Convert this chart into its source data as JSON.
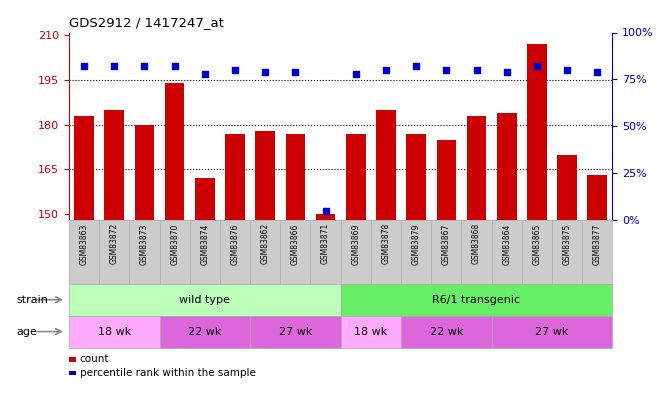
{
  "title": "GDS2912 / 1417247_at",
  "samples": [
    "GSM83863",
    "GSM83872",
    "GSM83873",
    "GSM83870",
    "GSM83874",
    "GSM83876",
    "GSM83862",
    "GSM83866",
    "GSM83871",
    "GSM83869",
    "GSM83878",
    "GSM83879",
    "GSM83867",
    "GSM83868",
    "GSM83864",
    "GSM83865",
    "GSM83875",
    "GSM83877"
  ],
  "counts": [
    183,
    185,
    180,
    194,
    162,
    177,
    178,
    177,
    150,
    177,
    185,
    177,
    175,
    183,
    184,
    207,
    170,
    163
  ],
  "percentiles": [
    82,
    82,
    82,
    82,
    78,
    80,
    79,
    79,
    5,
    78,
    80,
    82,
    80,
    80,
    79,
    82,
    80,
    79
  ],
  "ylim_left": [
    148,
    211
  ],
  "ylim_right": [
    0,
    100
  ],
  "yticks_left": [
    150,
    165,
    180,
    195,
    210
  ],
  "yticks_right": [
    0,
    25,
    50,
    75,
    100
  ],
  "bar_color": "#cc0000",
  "dot_color": "#0000cc",
  "bar_bottom": 148,
  "strain_groups": [
    {
      "label": "wild type",
      "start": 0,
      "end": 9,
      "color": "#bbffbb"
    },
    {
      "label": "R6/1 transgenic",
      "start": 9,
      "end": 18,
      "color": "#66ee66"
    }
  ],
  "age_groups": [
    {
      "label": "18 wk",
      "start": 0,
      "end": 3,
      "color": "#ffaaff"
    },
    {
      "label": "22 wk",
      "start": 3,
      "end": 6,
      "color": "#dd66dd"
    },
    {
      "label": "27 wk",
      "start": 6,
      "end": 9,
      "color": "#dd66dd"
    },
    {
      "label": "18 wk",
      "start": 9,
      "end": 11,
      "color": "#ffaaff"
    },
    {
      "label": "22 wk",
      "start": 11,
      "end": 14,
      "color": "#dd66dd"
    },
    {
      "label": "27 wk",
      "start": 14,
      "end": 18,
      "color": "#dd66dd"
    }
  ],
  "strain_label": "strain",
  "age_label": "age",
  "legend_count_label": "count",
  "legend_pct_label": "percentile rank within the sample",
  "axis_label_color_left": "#cc0000",
  "axis_label_color_right": "#0000cc",
  "tick_label_bg": "#cccccc",
  "dotted_line_values": [
    165,
    180,
    195
  ],
  "dot_size": 25,
  "arrow_color": "#888888"
}
